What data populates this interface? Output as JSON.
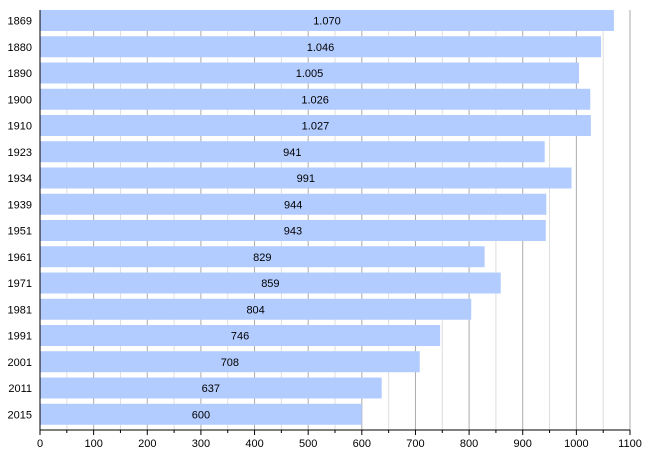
{
  "chart_data": {
    "type": "bar",
    "orientation": "horizontal",
    "title": "",
    "xlabel": "",
    "ylabel": "",
    "categories": [
      "1869",
      "1880",
      "1890",
      "1900",
      "1910",
      "1923",
      "1934",
      "1939",
      "1951",
      "1961",
      "1971",
      "1981",
      "1991",
      "2001",
      "2011",
      "2015"
    ],
    "values": [
      1070,
      1046,
      1005,
      1026,
      1027,
      941,
      991,
      944,
      943,
      829,
      859,
      804,
      746,
      708,
      637,
      600
    ],
    "value_labels": [
      "1.070",
      "1.046",
      "1.005",
      "1.026",
      "1.027",
      "941",
      "991",
      "944",
      "943",
      "829",
      "859",
      "804",
      "746",
      "708",
      "637",
      "600"
    ],
    "xlim": [
      0,
      1100
    ],
    "xticks": [
      0,
      100,
      200,
      300,
      400,
      500,
      600,
      700,
      800,
      900,
      1000,
      1100
    ],
    "xtick_labels": [
      "0",
      "100",
      "200",
      "300",
      "400",
      "500",
      "600",
      "700",
      "800",
      "900",
      "1000",
      "1100"
    ],
    "minor_step": 50,
    "grid": true,
    "legend": "none",
    "bar_color": "#b3ccff",
    "major_grid_color": "#aaaaaa",
    "minor_grid_color": "#dddddd"
  }
}
